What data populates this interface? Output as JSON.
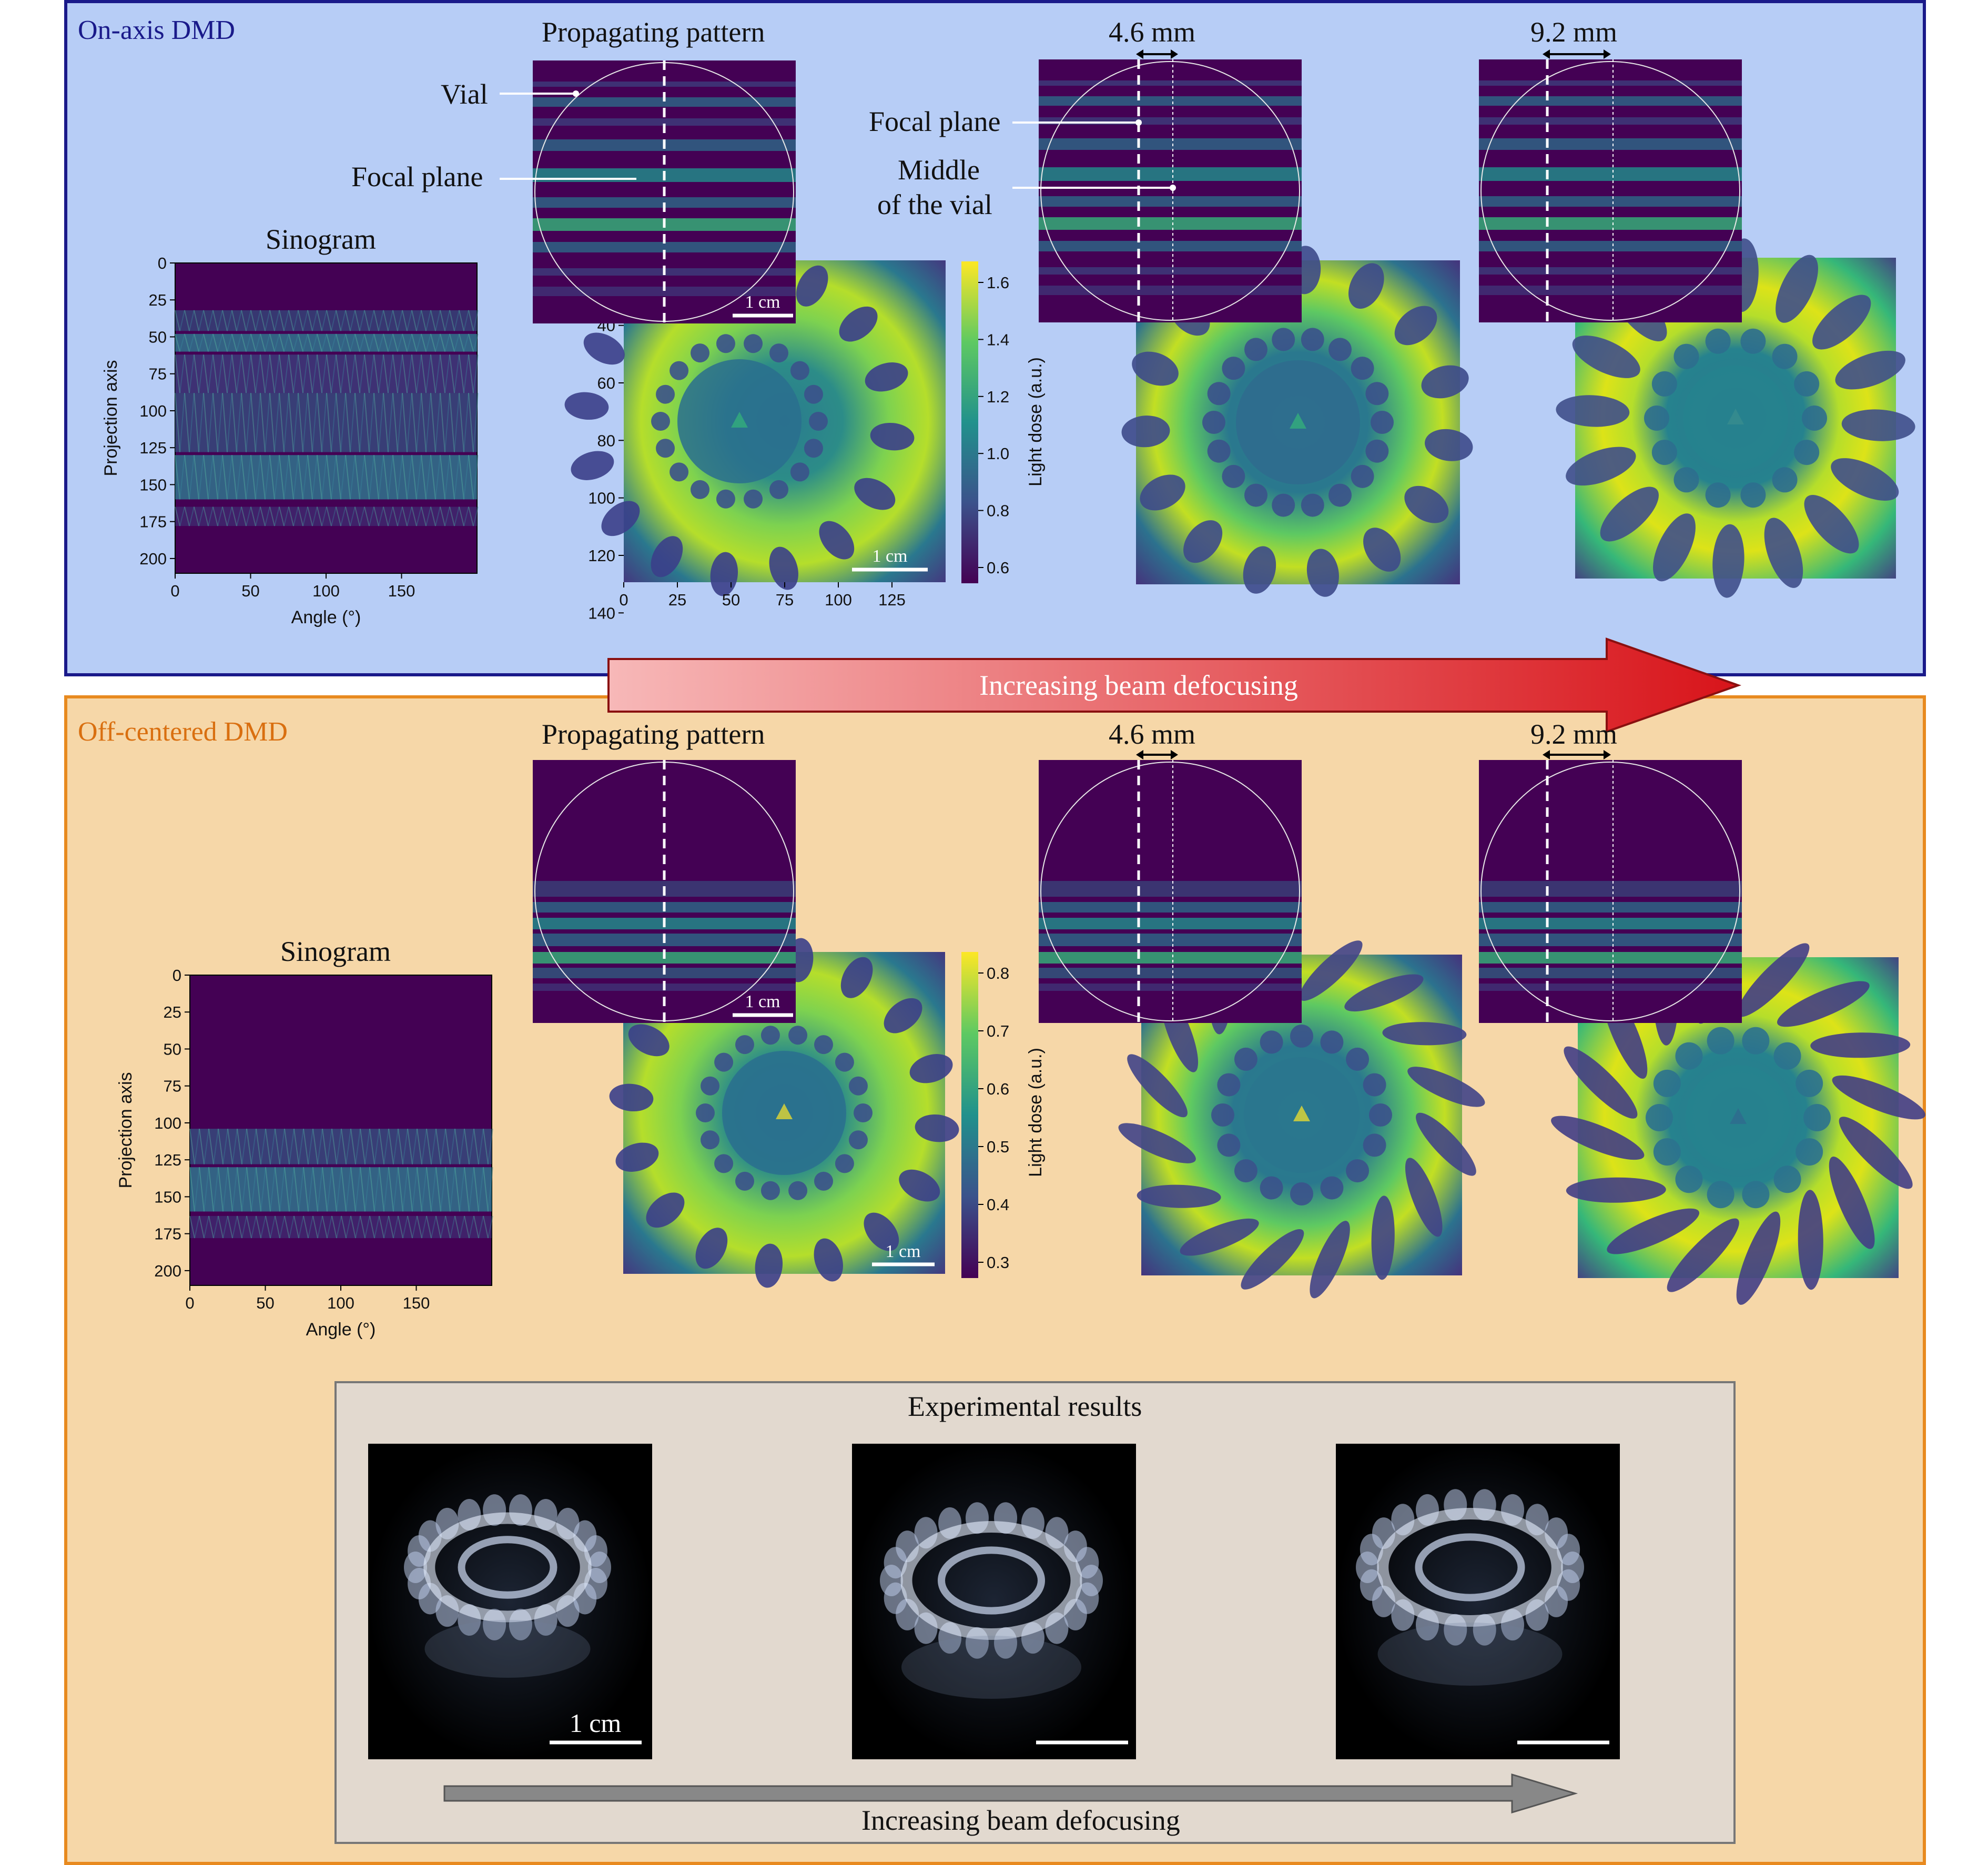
{
  "top_panel": {
    "title": "On-axis DMD",
    "bg_color": "#b7cdf6",
    "border_color": "#1a1a8a",
    "sinogram": {
      "title": "Sinogram",
      "xlabel": "Angle (°)",
      "ylabel": "Projection axis",
      "x_ticks": [
        "0",
        "50",
        "100",
        "150"
      ],
      "y_ticks": [
        "0",
        "25",
        "50",
        "75",
        "100",
        "125",
        "150",
        "175",
        "200"
      ]
    },
    "propagating_title": "Propagating pattern",
    "labels": {
      "vial": "Vial",
      "focal_plane_left": "Focal plane",
      "focal_plane_mid": "Focal plane",
      "middle_line1": "Middle",
      "middle_line2": "of the vial"
    },
    "distance_1": "4.6 mm",
    "distance_2": "9.2 mm",
    "scale_bar": "1 cm",
    "dose_map": {
      "x_ticks": [
        "0",
        "25",
        "50",
        "75",
        "100",
        "125"
      ],
      "y_ticks": [
        "40",
        "60",
        "80",
        "100",
        "120",
        "140"
      ]
    },
    "colorbar": {
      "label": "Light dose (a.u.)",
      "ticks": [
        "1.6",
        "1.4",
        "1.2",
        "1.0",
        "0.8",
        "0.6"
      ]
    }
  },
  "middle_arrow": {
    "label": "Increasing beam defocusing",
    "color_start": "#f7b8b8",
    "color_end": "#d8141a"
  },
  "bottom_panel": {
    "title": "Off-centered DMD",
    "bg_color": "#f6d7a8",
    "border_color": "#e88a1f",
    "sinogram": {
      "title": "Sinogram",
      "xlabel": "Angle (°)",
      "ylabel": "Projection axis",
      "x_ticks": [
        "0",
        "50",
        "100",
        "150"
      ],
      "y_ticks": [
        "0",
        "25",
        "50",
        "75",
        "100",
        "125",
        "150",
        "175",
        "200"
      ]
    },
    "propagating_title": "Propagating pattern",
    "distance_1": "4.6 mm",
    "distance_2": "9.2 mm",
    "scale_bar": "1 cm",
    "colorbar": {
      "label": "Light dose (a.u.)",
      "ticks": [
        "0.8",
        "0.7",
        "0.6",
        "0.5",
        "0.4",
        "0.3"
      ]
    },
    "experimental": {
      "title": "Experimental results",
      "scale_bar": "1 cm",
      "arrow_label": "Increasing beam defocusing",
      "bg_color": "#e2d9cf"
    }
  },
  "colors": {
    "viridis_dark": "#440154",
    "viridis_mid": "#21918c",
    "viridis_light": "#5ec962",
    "viridis_yellow": "#fde725"
  }
}
